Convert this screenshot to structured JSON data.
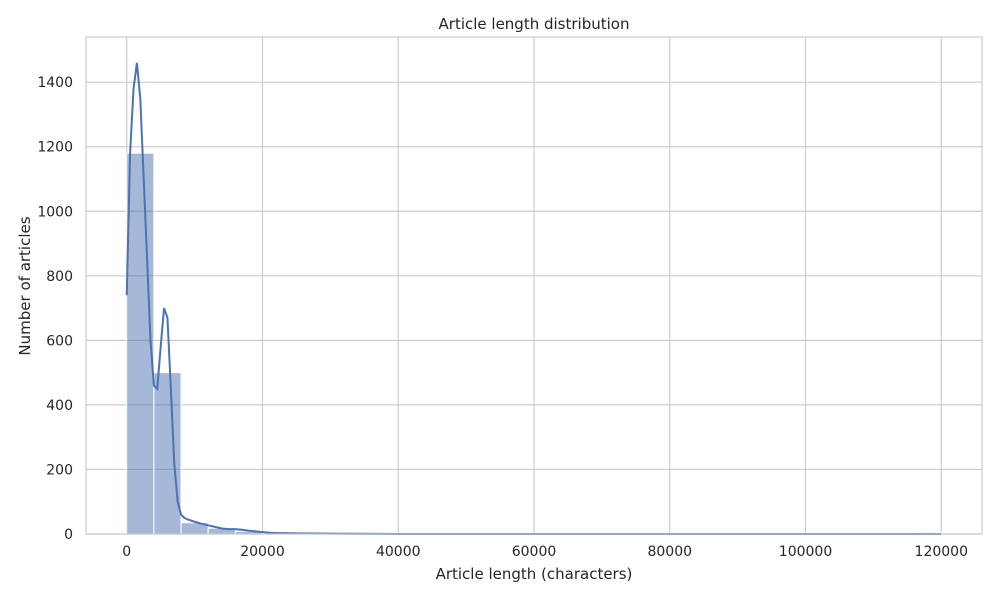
{
  "chart_data": {
    "type": "bar",
    "title": "Article length distribution",
    "xlabel": "Article length (characters)",
    "ylabel": "Number of articles",
    "xlim": [
      -6000,
      126000
    ],
    "ylim": [
      0,
      1540
    ],
    "xticks": [
      0,
      20000,
      40000,
      60000,
      80000,
      100000,
      120000
    ],
    "yticks": [
      0,
      200,
      400,
      600,
      800,
      1000,
      1200,
      1400
    ],
    "grid": true,
    "bar_color": "#4c72b0",
    "line_color": "#4c72b0",
    "histogram": {
      "bin_width": 4000,
      "bin_starts": [
        0,
        4000,
        8000,
        12000,
        16000,
        20000,
        24000,
        28000,
        32000,
        36000,
        40000,
        44000,
        48000,
        52000,
        56000,
        60000,
        64000,
        68000,
        72000,
        76000,
        80000,
        84000,
        88000,
        92000,
        96000,
        100000,
        104000,
        108000,
        112000,
        116000
      ],
      "counts": [
        1180,
        500,
        35,
        18,
        8,
        2,
        1,
        1,
        0,
        0,
        0,
        0,
        0,
        0,
        0,
        0,
        0,
        0,
        0,
        0,
        0,
        0,
        0,
        0,
        0,
        0,
        0,
        0,
        0,
        5
      ]
    },
    "kde": {
      "x": [
        0,
        500,
        1000,
        1500,
        2000,
        2500,
        3000,
        3500,
        4000,
        4500,
        5000,
        5500,
        6000,
        6500,
        7000,
        7500,
        8000,
        8500,
        9000,
        10000,
        11000,
        12000,
        13000,
        14000,
        15000,
        16000,
        17000,
        18000,
        19000,
        20000,
        21000,
        22000,
        25000,
        30000,
        40000,
        60000,
        80000,
        100000,
        120000
      ],
      "y": [
        740,
        1180,
        1380,
        1460,
        1350,
        1100,
        850,
        600,
        460,
        450,
        580,
        700,
        670,
        450,
        220,
        100,
        60,
        50,
        45,
        38,
        32,
        27,
        22,
        17,
        15,
        15,
        13,
        10,
        8,
        6,
        4,
        3,
        2,
        1,
        0,
        0,
        0,
        0,
        0
      ]
    }
  }
}
